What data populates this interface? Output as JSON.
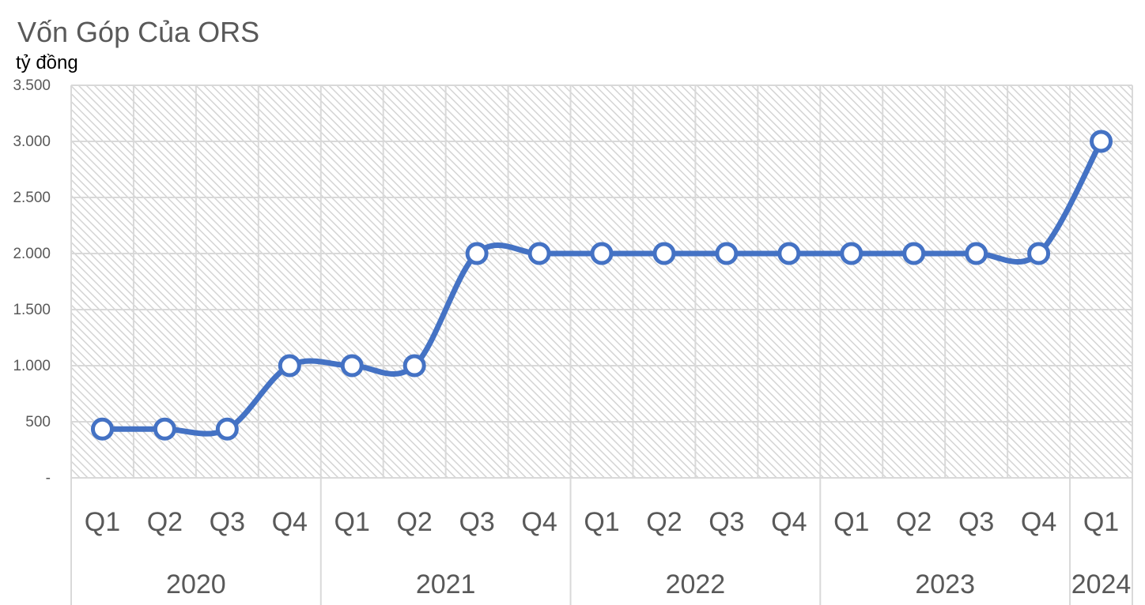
{
  "chart_data": {
    "type": "line",
    "title": "Vốn Góp Của ORS",
    "ylabel": "tỷ đồng",
    "xlabel": "",
    "ylim": [
      0,
      3500
    ],
    "y_ticks": [
      {
        "value": 0,
        "label": "-"
      },
      {
        "value": 500,
        "label": "500"
      },
      {
        "value": 1000,
        "label": "1.000"
      },
      {
        "value": 1500,
        "label": "1.500"
      },
      {
        "value": 2000,
        "label": "2.000"
      },
      {
        "value": 2500,
        "label": "2.500"
      },
      {
        "value": 3000,
        "label": "3.000"
      },
      {
        "value": 3500,
        "label": "3.500"
      }
    ],
    "categories": [
      "Q1",
      "Q2",
      "Q3",
      "Q4",
      "Q1",
      "Q2",
      "Q3",
      "Q4",
      "Q1",
      "Q2",
      "Q3",
      "Q4",
      "Q1",
      "Q2",
      "Q3",
      "Q4",
      "Q1"
    ],
    "groups": [
      {
        "label": "2020",
        "count": 4
      },
      {
        "label": "2021",
        "count": 4
      },
      {
        "label": "2022",
        "count": 4
      },
      {
        "label": "2023",
        "count": 4
      },
      {
        "label": "2024",
        "count": 1
      }
    ],
    "series": [
      {
        "values": [
          435,
          435,
          435,
          1000,
          1000,
          1000,
          2000,
          2000,
          2000,
          2000,
          2000,
          2000,
          2000,
          2000,
          2000,
          2000,
          3000
        ]
      }
    ],
    "smooth": true,
    "grid": true,
    "line_color": "#4472C4",
    "marker_fill": "#ffffff",
    "grid_color": "#d9d9d9",
    "text_color": "#595959"
  }
}
